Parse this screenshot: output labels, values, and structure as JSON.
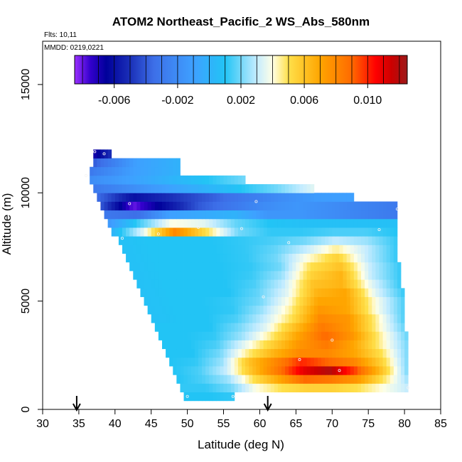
{
  "chart_data": {
    "type": "heatmap",
    "title": "ATOM2 Northeast_Pacific_2 WS_Abs_580nm",
    "subtitle_lines": [
      "Flts: 10,11",
      "MMDD: 0219,0221"
    ],
    "xlabel": "Latitude (deg N)",
    "ylabel": "Altitude (m)",
    "xlim": [
      30,
      85
    ],
    "ylim": [
      0,
      17000
    ],
    "x_ticks": [
      30,
      35,
      40,
      45,
      50,
      55,
      60,
      65,
      70,
      75,
      80,
      85
    ],
    "y_ticks": [
      0,
      5000,
      10000,
      15000
    ],
    "colorbar": {
      "range": [
        -0.0085,
        0.0125
      ],
      "tick_values": [
        -0.006,
        -0.002,
        0.002,
        0.006,
        0.01
      ],
      "tick_labels": [
        "-0.006",
        "-0.002",
        "0.002",
        "0.006",
        "0.010"
      ],
      "stops": [
        {
          "v": -0.0085,
          "c": "#9b30ff"
        },
        {
          "v": -0.0075,
          "c": "#3300cc"
        },
        {
          "v": -0.0065,
          "c": "#00009a"
        },
        {
          "v": -0.005,
          "c": "#1a2fb8"
        },
        {
          "v": -0.0035,
          "c": "#3d6fe8"
        },
        {
          "v": -0.001,
          "c": "#3ea0ff"
        },
        {
          "v": 0.001,
          "c": "#22c4f5"
        },
        {
          "v": 0.003,
          "c": "#c4ecff"
        },
        {
          "v": 0.004,
          "c": "#ffffe6"
        },
        {
          "v": 0.005,
          "c": "#ffe04a"
        },
        {
          "v": 0.007,
          "c": "#ffa500"
        },
        {
          "v": 0.009,
          "c": "#ff6a00"
        },
        {
          "v": 0.0105,
          "c": "#ff0000"
        },
        {
          "v": 0.0115,
          "c": "#cc0000"
        },
        {
          "v": 0.0125,
          "c": "#9b1a1a"
        }
      ]
    },
    "profile_latitudes": [
      34.7,
      61.1
    ],
    "rows": [
      {
        "alt": 600,
        "lat_start": 49.5,
        "lat_end": 56.5,
        "values": [
          0.001,
          0.001,
          0.0012
        ]
      },
      {
        "alt": 1000,
        "lat_start": 49.0,
        "lat_end": 80.5,
        "values": [
          0.0012,
          0.0012,
          0.002,
          0.004,
          0.005,
          0.0055,
          0.0055,
          0.005,
          0.004,
          0.003
        ]
      },
      {
        "alt": 1400,
        "lat_start": 48.5,
        "lat_end": 80.5,
        "values": [
          0.001,
          0.0015,
          0.0025,
          0.005,
          0.007,
          0.009,
          0.0085,
          0.0075,
          0.005,
          0.0025
        ]
      },
      {
        "alt": 1800,
        "lat_start": 48.0,
        "lat_end": 80.5,
        "values": [
          0.001,
          0.0015,
          0.003,
          0.006,
          0.0085,
          0.011,
          0.012,
          0.0095,
          0.006,
          0.002
        ]
      },
      {
        "alt": 2200,
        "lat_start": 47.5,
        "lat_end": 80.5,
        "values": [
          0.001,
          0.0012,
          0.0025,
          0.006,
          0.008,
          0.01,
          0.009,
          0.008,
          0.0055,
          0.002
        ]
      },
      {
        "alt": 2600,
        "lat_start": 47.0,
        "lat_end": 80.5,
        "values": [
          0.001,
          0.001,
          0.002,
          0.0045,
          0.0065,
          0.008,
          0.008,
          0.007,
          0.005,
          0.002
        ]
      },
      {
        "alt": 3000,
        "lat_start": 46.5,
        "lat_end": 80.5,
        "values": [
          0.001,
          0.001,
          0.0015,
          0.0035,
          0.0055,
          0.0075,
          0.0085,
          0.007,
          0.0045,
          0.002
        ]
      },
      {
        "alt": 3400,
        "lat_start": 46.0,
        "lat_end": 80.5,
        "values": [
          0.001,
          0.001,
          0.0012,
          0.0025,
          0.0045,
          0.007,
          0.009,
          0.0075,
          0.0045,
          0.0018
        ]
      },
      {
        "alt": 3800,
        "lat_start": 45.5,
        "lat_end": 80.0,
        "values": [
          0.001,
          0.001,
          0.001,
          0.002,
          0.0035,
          0.006,
          0.0085,
          0.0075,
          0.0045,
          0.0018
        ]
      },
      {
        "alt": 4200,
        "lat_start": 45.0,
        "lat_end": 80.0,
        "values": [
          0.0008,
          0.001,
          0.001,
          0.0015,
          0.003,
          0.005,
          0.008,
          0.0075,
          0.0045,
          0.0015
        ]
      },
      {
        "alt": 4600,
        "lat_start": 44.5,
        "lat_end": 80.0,
        "values": [
          0.0008,
          0.001,
          0.001,
          0.0012,
          0.0025,
          0.0045,
          0.0075,
          0.007,
          0.004,
          0.0015
        ]
      },
      {
        "alt": 5000,
        "lat_start": 44.0,
        "lat_end": 80.0,
        "values": [
          0.0008,
          0.001,
          0.001,
          0.0012,
          0.002,
          0.004,
          0.007,
          0.007,
          0.004,
          0.0015
        ]
      },
      {
        "alt": 5400,
        "lat_start": 43.5,
        "lat_end": 80.0,
        "values": [
          0.0008,
          0.001,
          0.001,
          0.001,
          0.0018,
          0.0035,
          0.0065,
          0.007,
          0.0035,
          0.0012
        ]
      },
      {
        "alt": 5800,
        "lat_start": 43.0,
        "lat_end": 79.5,
        "values": [
          0.0008,
          0.001,
          0.001,
          0.001,
          0.0015,
          0.003,
          0.006,
          0.0065,
          0.0035,
          0.0012
        ]
      },
      {
        "alt": 6200,
        "lat_start": 42.5,
        "lat_end": 79.5,
        "values": [
          0.0008,
          0.001,
          0.001,
          0.001,
          0.0013,
          0.0025,
          0.0055,
          0.0065,
          0.003,
          0.0012
        ]
      },
      {
        "alt": 6600,
        "lat_start": 42.0,
        "lat_end": 79.5,
        "values": [
          0.0008,
          0.001,
          0.001,
          0.001,
          0.0012,
          0.002,
          0.005,
          0.006,
          0.003,
          0.0012
        ]
      },
      {
        "alt": 7000,
        "lat_start": 41.5,
        "lat_end": 79.0,
        "values": [
          0.0008,
          0.001,
          0.001,
          0.001,
          0.0012,
          0.002,
          0.004,
          0.0055,
          0.003,
          0.0012
        ]
      },
      {
        "alt": 7400,
        "lat_start": 41.0,
        "lat_end": 79.0,
        "values": [
          0.0008,
          0.001,
          0.001,
          0.001,
          0.0012,
          0.0018,
          0.003,
          0.0045,
          0.003,
          0.0012
        ]
      },
      {
        "alt": 7800,
        "lat_start": 40.5,
        "lat_end": 79.0,
        "values": [
          0.0008,
          0.001,
          0.001,
          0.001,
          0.0012,
          0.0015,
          0.002,
          0.003,
          0.0025,
          0.0012
        ]
      },
      {
        "alt": 8200,
        "lat_start": 39.5,
        "lat_end": 79.0,
        "values": [
          0.0,
          0.0035,
          0.008,
          0.005,
          0.002,
          0.0012,
          0.0012,
          0.0015,
          0.0015,
          0.001
        ]
      },
      {
        "alt": 8600,
        "lat_start": 39.0,
        "lat_end": 79.0,
        "values": [
          -0.0015,
          0.0015,
          0.004,
          0.0035,
          0.0018,
          0.001,
          0.0008,
          0.0008,
          0.0008,
          0.0008
        ]
      },
      {
        "alt": 9000,
        "lat_start": 38.5,
        "lat_end": 79.0,
        "values": [
          -0.003,
          -0.0035,
          -0.001,
          -0.0005,
          0.0,
          -0.0015,
          -0.0015,
          -0.002,
          -0.0025,
          -0.003
        ]
      },
      {
        "alt": 9400,
        "lat_start": 38.0,
        "lat_end": 79.0,
        "values": [
          -0.004,
          -0.008,
          -0.006,
          -0.004,
          -0.003,
          -0.002,
          -0.0015,
          -0.002,
          -0.0025,
          -0.003
        ]
      },
      {
        "alt": 9800,
        "lat_start": 37.5,
        "lat_end": 73.0,
        "values": [
          -0.0035,
          -0.006,
          -0.005,
          -0.004,
          -0.003,
          -0.002,
          -0.0012,
          -0.001
        ]
      },
      {
        "alt": 10200,
        "lat_start": 37.0,
        "lat_end": 67.5,
        "values": [
          -0.003,
          -0.002,
          -0.001,
          0.0,
          0.001,
          0.002,
          0.0035
        ]
      },
      {
        "alt": 10600,
        "lat_start": 36.5,
        "lat_end": 58.0,
        "values": [
          -0.002,
          -0.001,
          0.0,
          0.001,
          0.002
        ]
      },
      {
        "alt": 11000,
        "lat_start": 36.5,
        "lat_end": 49.0,
        "values": [
          -0.003,
          -0.001,
          0.0
        ]
      },
      {
        "alt": 11400,
        "lat_start": 37.0,
        "lat_end": 49.0,
        "values": [
          -0.004,
          -0.001,
          0.0
        ]
      },
      {
        "alt": 11800,
        "lat_start": 37.0,
        "lat_end": 39.5,
        "values": [
          -0.007,
          -0.005
        ]
      }
    ],
    "sample_points": [
      [
        37.2,
        11900
      ],
      [
        38.5,
        11800
      ],
      [
        36.0,
        10800
      ],
      [
        42.0,
        9500
      ],
      [
        59.5,
        9600
      ],
      [
        79.0,
        9250
      ],
      [
        51.5,
        8400
      ],
      [
        57.5,
        8350
      ],
      [
        46.0,
        8100
      ],
      [
        41.0,
        7900
      ],
      [
        64.0,
        7700
      ],
      [
        73.0,
        7400
      ],
      [
        76.5,
        8300
      ],
      [
        60.5,
        5200
      ],
      [
        70.0,
        3200
      ],
      [
        65.5,
        2300
      ],
      [
        71.0,
        1800
      ],
      [
        80.5,
        1000
      ],
      [
        50.0,
        600
      ],
      [
        56.3,
        600
      ]
    ]
  }
}
